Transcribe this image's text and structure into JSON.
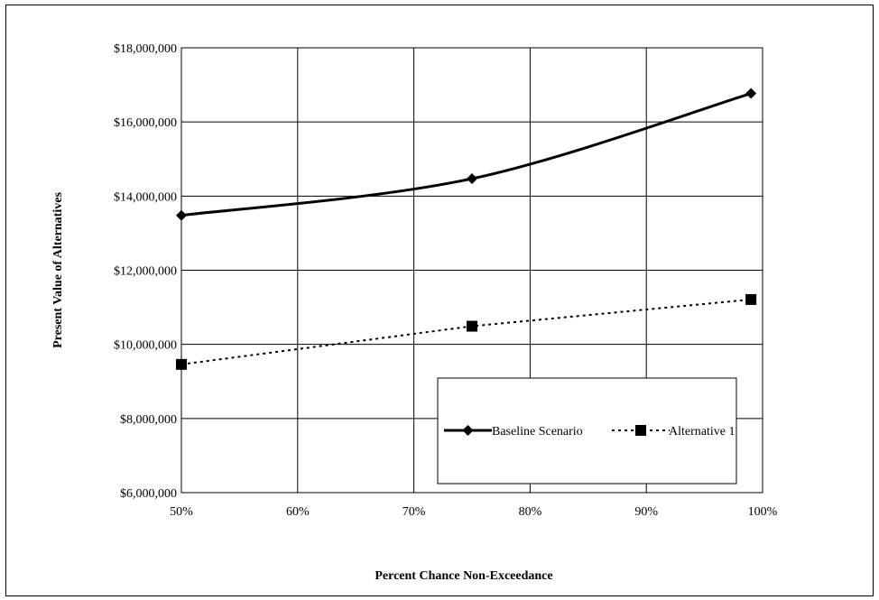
{
  "chart_data": {
    "type": "line",
    "title": "",
    "xlabel": "Percent Chance Non-Exceedance",
    "ylabel": "Present Value of Alternatives",
    "xlim": [
      50,
      100
    ],
    "ylim": [
      6000000,
      18000000
    ],
    "x_ticks": [
      "50%",
      "60%",
      "70%",
      "80%",
      "90%",
      "100%"
    ],
    "y_ticks": [
      "$6,000,000",
      "$8,000,000",
      "$10,000,000",
      "$12,000,000",
      "$14,000,000",
      "$16,000,000",
      "$18,000,000"
    ],
    "grid": true,
    "legend_position": "bottom-right",
    "series": [
      {
        "name": "Baseline Scenario",
        "marker": "diamond",
        "line_style": "solid",
        "smooth": true,
        "color": "#000000",
        "points": [
          {
            "x": 50,
            "y": 13480000
          },
          {
            "x": 75,
            "y": 14470000
          },
          {
            "x": 99,
            "y": 16770000
          }
        ]
      },
      {
        "name": "Alternative 1",
        "marker": "square",
        "line_style": "dotted",
        "smooth": false,
        "color": "#000000",
        "points": [
          {
            "x": 50,
            "y": 9460000
          },
          {
            "x": 75,
            "y": 10490000
          },
          {
            "x": 99,
            "y": 11210000
          }
        ]
      }
    ]
  }
}
